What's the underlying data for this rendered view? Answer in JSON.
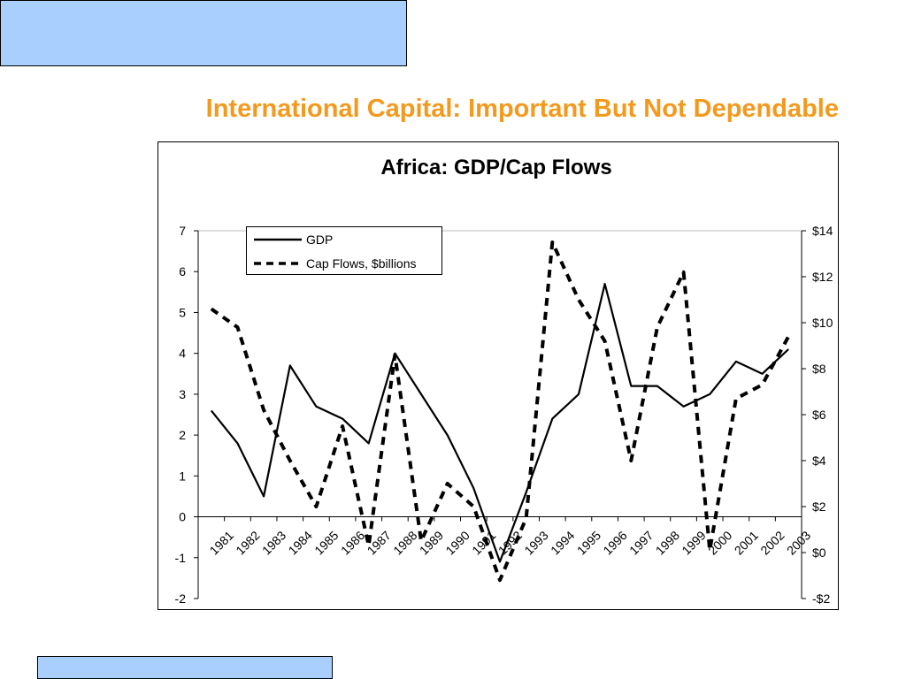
{
  "slide": {
    "title": "International Capital: Important But Not Dependable"
  },
  "colors": {
    "title": "#f39a1e",
    "decor_box": "#a9cfff",
    "series": "#000000",
    "gridline": "#bdbdbd"
  },
  "chart_data": {
    "type": "line",
    "title": "Africa: GDP/Cap Flows",
    "xlabel": "",
    "ylabel": "",
    "y2label": "",
    "x": [
      "1981",
      "1982",
      "1983",
      "1984",
      "1985",
      "1986",
      "1987",
      "1988",
      "1989",
      "1990",
      "1991",
      "1992",
      "1993",
      "1994",
      "1995",
      "1996",
      "1997",
      "1998",
      "1999",
      "2000",
      "2001",
      "2002",
      "2003"
    ],
    "ylim": [
      -2,
      7
    ],
    "yticks": [
      -2,
      -1,
      0,
      1,
      2,
      3,
      4,
      5,
      6,
      7
    ],
    "ytick_labels": [
      "-2",
      "-1",
      "0",
      "1",
      "2",
      "3",
      "4",
      "5",
      "6",
      "7"
    ],
    "y2lim": [
      -2,
      14
    ],
    "y2ticks": [
      -2,
      0,
      2,
      4,
      6,
      8,
      10,
      12,
      14
    ],
    "y2tick_labels": [
      "-$2",
      "$0",
      "$2",
      "$4",
      "$6",
      "$8",
      "$10",
      "$12",
      "$14"
    ],
    "grid": "horizontal-top-only",
    "legend_position": "top-left",
    "series": [
      {
        "name": "GDP",
        "axis": "left",
        "style": "solid",
        "values": [
          2.6,
          1.8,
          0.5,
          3.7,
          2.7,
          2.4,
          1.8,
          4.0,
          3.0,
          2.0,
          0.7,
          -1.1,
          0.6,
          2.4,
          3.0,
          5.7,
          3.2,
          3.2,
          2.7,
          3.0,
          3.8,
          3.5,
          4.1
        ]
      },
      {
        "name": "Cap Flows, $billions",
        "axis": "right",
        "style": "dashed",
        "values": [
          10.6,
          9.8,
          6.2,
          4.0,
          2.0,
          5.5,
          0.3,
          8.6,
          0.5,
          3.0,
          2.0,
          -1.2,
          1.5,
          13.5,
          11.0,
          9.2,
          4.0,
          9.8,
          12.2,
          0.1,
          6.7,
          7.3,
          9.4
        ]
      }
    ]
  }
}
